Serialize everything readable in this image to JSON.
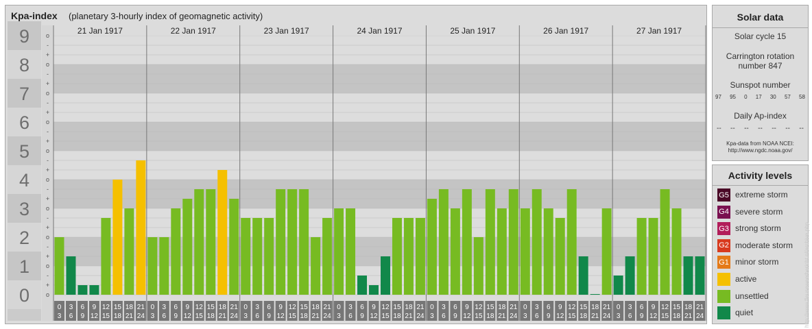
{
  "header": {
    "title": "Kpa-index",
    "subtitle": "(planetary 3-hourly index of geomagnetic activity)"
  },
  "chart_data": {
    "type": "bar",
    "title": "Kpa-index",
    "subtitle": "(planetary 3-hourly index of geomagnetic activity)",
    "ylim": [
      0,
      9
    ],
    "y_major_labels": [
      "0",
      "1",
      "2",
      "3",
      "4",
      "5",
      "6",
      "7",
      "8",
      "9"
    ],
    "y_minor_marks": [
      "+",
      "o",
      "-"
    ],
    "days": [
      "21 Jan 1917",
      "22 Jan 1917",
      "23 Jan 1917",
      "24 Jan 1917",
      "25 Jan 1917",
      "26 Jan 1917",
      "27 Jan 1917"
    ],
    "interval_tops": [
      "0",
      "3",
      "6",
      "9",
      "12",
      "15",
      "18",
      "21"
    ],
    "interval_bottoms": [
      "3",
      "6",
      "9",
      "12",
      "15",
      "18",
      "21",
      "24"
    ],
    "values": [
      [
        2.0,
        1.333,
        0.333,
        0.333,
        2.667,
        4.0,
        3.0,
        4.667
      ],
      [
        2.0,
        2.0,
        3.0,
        3.333,
        3.667,
        3.667,
        4.333,
        3.333
      ],
      [
        2.667,
        2.667,
        2.667,
        3.667,
        3.667,
        3.667,
        2.0,
        2.667
      ],
      [
        3.0,
        3.0,
        0.667,
        0.333,
        1.333,
        2.667,
        2.667,
        2.667
      ],
      [
        3.333,
        3.667,
        3.0,
        3.667,
        2.0,
        3.667,
        3.0,
        3.667
      ],
      [
        3.0,
        3.667,
        3.0,
        2.667,
        3.667,
        1.333,
        0.0,
        3.0
      ],
      [
        0.667,
        1.333,
        2.667,
        2.667,
        3.667,
        3.0,
        1.333,
        1.333
      ]
    ],
    "colors": {
      "quiet": "#11884a",
      "unsettled": "#77bb22",
      "active": "#f5c000",
      "minor_storm": "#e57a18",
      "moderate_storm": "#d83a1e",
      "strong_storm": "#b21d5a",
      "severe_storm": "#7a1050",
      "extreme_storm": "#4a0826"
    },
    "grid": true
  },
  "solar": {
    "title": "Solar data",
    "cycle": "Solar cycle 15",
    "carrington_line1": "Carrington rotation",
    "carrington_line2": "number 847",
    "sunspot_title": "Sunspot number",
    "sunspots": [
      "97",
      "95",
      "0",
      "17",
      "30",
      "57",
      "58"
    ],
    "ap_title": "Daily Ap-index",
    "ap_values": [
      "--",
      "--",
      "--",
      "--",
      "--",
      "--",
      "--"
    ],
    "source_line1": "Kpa-data from NOAA NCEI:",
    "source_line2": "http://www.ngdc.noaa.gov/"
  },
  "levels": {
    "title": "Activity levels",
    "items": [
      {
        "code": "G5",
        "label": "extreme storm",
        "color": "#4a0826"
      },
      {
        "code": "G4",
        "label": "severe storm",
        "color": "#7a1050"
      },
      {
        "code": "G3",
        "label": "strong storm",
        "color": "#b21d5a"
      },
      {
        "code": "G2",
        "label": "moderate storm",
        "color": "#d83a1e"
      },
      {
        "code": "G1",
        "label": "minor storm",
        "color": "#e57a18"
      },
      {
        "code": "",
        "label": "active",
        "color": "#f5c000"
      },
      {
        "code": "",
        "label": "unsettled",
        "color": "#77bb22"
      },
      {
        "code": "",
        "label": "quiet",
        "color": "#11884a"
      }
    ]
  },
  "watermark": "http://www.fleuseweerbericht.nl/archive.php"
}
